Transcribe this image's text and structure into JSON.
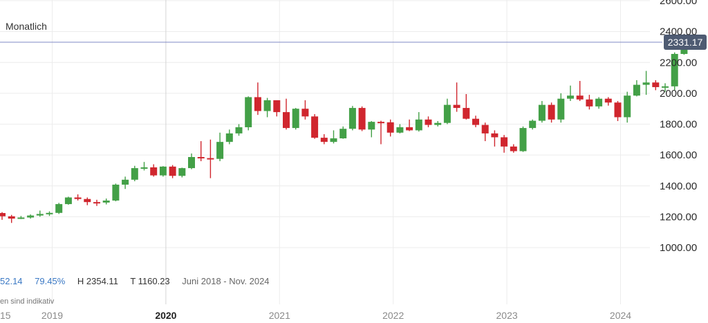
{
  "interval": "Monatlich",
  "stats": {
    "change": "52.14",
    "percent": "79.45%",
    "high": "H 2354.11",
    "low": "T 1160.23",
    "range": "Juni 2018 - Nov. 2024"
  },
  "disclaimer": "en sind indikativ",
  "colors": {
    "up": "#43a047",
    "down": "#d0262e",
    "price_line": "#7f88c4",
    "price_badge": "#4e5b72",
    "grid": "#ececec"
  },
  "chart_data": {
    "type": "candlestick",
    "current_price": 2331.17,
    "current_price_label": "2331.17",
    "ylim": [
      1000,
      2600
    ],
    "yticks": [
      1000,
      1200,
      1400,
      1600,
      1800,
      2000,
      2200,
      2400,
      2600
    ],
    "ytick_labels": [
      "1000.00",
      "1200.00",
      "1400.00",
      "1600.00",
      "1800.00",
      "2000.00",
      "2200.00",
      "2400.00",
      "2600.00"
    ],
    "xticks": [
      {
        "label": "15",
        "month": -1,
        "major": false
      },
      {
        "label": "2019",
        "month": 5,
        "major": false
      },
      {
        "label": "2020",
        "month": 17,
        "major": true
      },
      {
        "label": "2021",
        "month": 29,
        "major": false
      },
      {
        "label": "2022",
        "month": 41,
        "major": false
      },
      {
        "label": "2023",
        "month": 53,
        "major": false
      },
      {
        "label": "2024",
        "month": 65,
        "major": false
      }
    ],
    "candles": [
      [
        1224,
        1203,
        1230,
        1180
      ],
      [
        1203,
        1188,
        1212,
        1160
      ],
      [
        1188,
        1195,
        1205,
        1185
      ],
      [
        1195,
        1208,
        1215,
        1188
      ],
      [
        1208,
        1218,
        1240,
        1200
      ],
      [
        1218,
        1225,
        1235,
        1205
      ],
      [
        1225,
        1282,
        1290,
        1218
      ],
      [
        1282,
        1325,
        1330,
        1278
      ],
      [
        1325,
        1315,
        1345,
        1305
      ],
      [
        1315,
        1295,
        1325,
        1275
      ],
      [
        1295,
        1292,
        1310,
        1270
      ],
      [
        1292,
        1305,
        1318,
        1280
      ],
      [
        1305,
        1408,
        1415,
        1300
      ],
      [
        1408,
        1440,
        1460,
        1380
      ],
      [
        1440,
        1515,
        1530,
        1430
      ],
      [
        1515,
        1520,
        1555,
        1500
      ],
      [
        1520,
        1468,
        1540,
        1460
      ],
      [
        1468,
        1525,
        1528,
        1460
      ],
      [
        1525,
        1465,
        1535,
        1450
      ],
      [
        1465,
        1515,
        1518,
        1455
      ],
      [
        1515,
        1587,
        1610,
        1508
      ],
      [
        1587,
        1580,
        1690,
        1560
      ],
      [
        1580,
        1575,
        1700,
        1450
      ],
      [
        1575,
        1685,
        1745,
        1560
      ],
      [
        1685,
        1740,
        1765,
        1670
      ],
      [
        1740,
        1780,
        1800,
        1725
      ],
      [
        1780,
        1975,
        1980,
        1760
      ],
      [
        1975,
        1885,
        2070,
        1860
      ],
      [
        1885,
        1955,
        1970,
        1845
      ],
      [
        1955,
        1878,
        1940,
        1850
      ],
      [
        1878,
        1775,
        1965,
        1765
      ],
      [
        1775,
        1900,
        1905,
        1765
      ],
      [
        1900,
        1850,
        1955,
        1830
      ],
      [
        1850,
        1712,
        1865,
        1705
      ],
      [
        1712,
        1685,
        1735,
        1670
      ],
      [
        1685,
        1708,
        1760,
        1675
      ],
      [
        1708,
        1770,
        1785,
        1705
      ],
      [
        1770,
        1905,
        1918,
        1760
      ],
      [
        1905,
        1765,
        1915,
        1755
      ],
      [
        1765,
        1815,
        1820,
        1715
      ],
      [
        1815,
        1812,
        1822,
        1670
      ],
      [
        1812,
        1745,
        1830,
        1720
      ],
      [
        1745,
        1780,
        1800,
        1740
      ],
      [
        1780,
        1760,
        1830,
        1755
      ],
      [
        1760,
        1830,
        1878,
        1752
      ],
      [
        1830,
        1795,
        1850,
        1780
      ],
      [
        1795,
        1808,
        1820,
        1785
      ],
      [
        1808,
        1925,
        1965,
        1800
      ],
      [
        1925,
        1905,
        2070,
        1880
      ],
      [
        1905,
        1835,
        1995,
        1830
      ],
      [
        1835,
        1795,
        1855,
        1780
      ],
      [
        1795,
        1740,
        1810,
        1690
      ],
      [
        1740,
        1715,
        1760,
        1655
      ],
      [
        1715,
        1655,
        1730,
        1615
      ],
      [
        1655,
        1625,
        1670,
        1615
      ],
      [
        1625,
        1775,
        1785,
        1620
      ],
      [
        1775,
        1822,
        1830,
        1765
      ],
      [
        1822,
        1925,
        1950,
        1810
      ],
      [
        1925,
        1830,
        1940,
        1810
      ],
      [
        1830,
        1965,
        2000,
        1810
      ],
      [
        1965,
        1985,
        2050,
        1950
      ],
      [
        1985,
        1960,
        2080,
        1950
      ],
      [
        1960,
        1915,
        1990,
        1895
      ],
      [
        1915,
        1965,
        1975,
        1900
      ],
      [
        1965,
        1940,
        1975,
        1920
      ],
      [
        1940,
        1845,
        1950,
        1820
      ],
      [
        1845,
        1985,
        2010,
        1810
      ],
      [
        1985,
        2055,
        2085,
        1980
      ],
      [
        2055,
        2070,
        2145,
        1990
      ],
      [
        2070,
        2040,
        2085,
        2020
      ],
      [
        2040,
        2045,
        2065,
        2010
      ],
      [
        2045,
        2255,
        2265,
        2020
      ],
      [
        2255,
        2360,
        2365,
        2250
      ]
    ]
  }
}
